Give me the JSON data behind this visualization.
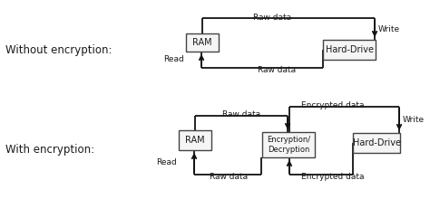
{
  "bg_color": "#ffffff",
  "label_color": "#1a1a1a",
  "box_edge_color": "#444444",
  "box_fill": "#f5f5f5",
  "arrow_color": "#111111",
  "section1_label": "Without encryption:",
  "section2_label": "With encryption:",
  "ram_label": "RAM",
  "hd_label": "Hard-Drive",
  "enc_label": "Encryption/\nDecryption",
  "raw_data_label": "Raw data",
  "write_label": "Write",
  "read_label": "Read",
  "encrypted_data_label": "Encrypted data",
  "fig_w": 4.74,
  "fig_h": 2.2,
  "dpi": 100
}
